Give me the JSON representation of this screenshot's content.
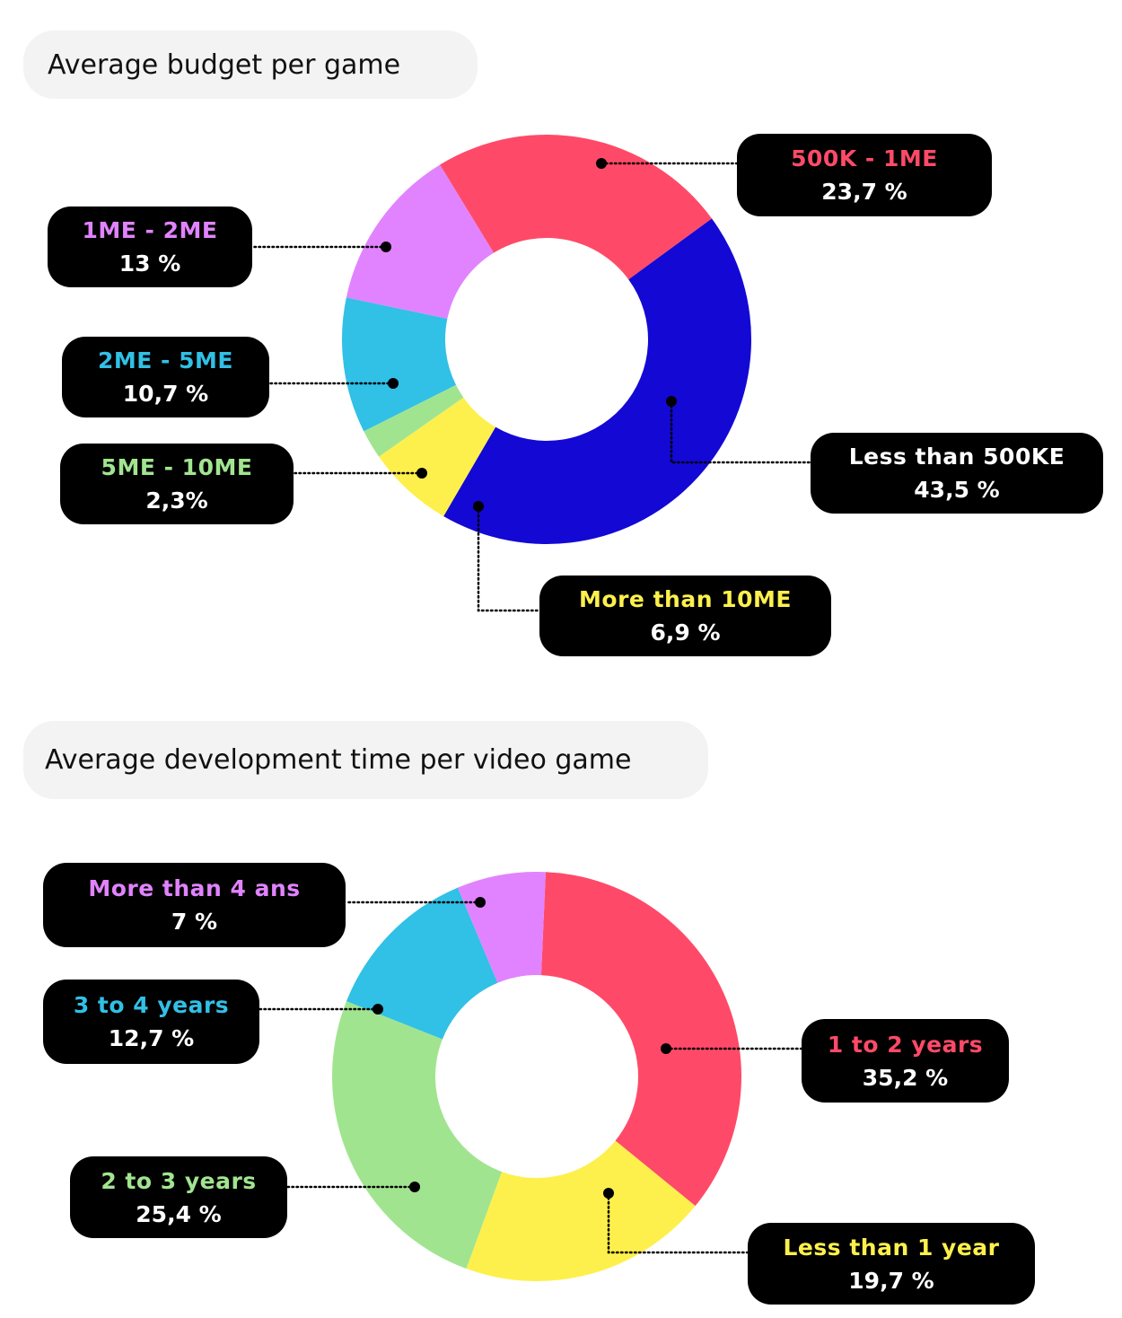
{
  "chart_data": [
    {
      "type": "pie",
      "title": "Average budget per game",
      "slices": [
        {
          "label": "Less than 500KE",
          "value": 43.5,
          "display": "43,5 %",
          "color": "#1408d4",
          "label_color": "#ffffff"
        },
        {
          "label": "More than 10ME",
          "value": 6.9,
          "display": "6,9 %",
          "color": "#fef04c",
          "label_color": "#fef04c"
        },
        {
          "label": "5ME - 10ME",
          "value": 2.3,
          "display": "2,3%",
          "color": "#a1e490",
          "label_color": "#a1e490"
        },
        {
          "label": "2ME - 5ME",
          "value": 10.7,
          "display": "10,7 %",
          "color": "#31c0e6",
          "label_color": "#31c0e6"
        },
        {
          "label": "1ME - 2ME",
          "value": 13,
          "display": "13 %",
          "color": "#e183fe",
          "label_color": "#e183fe"
        },
        {
          "label": "500K - 1ME",
          "value": 23.7,
          "display": "23,7 %",
          "color": "#fe4a68",
          "label_color": "#fe4a68"
        }
      ]
    },
    {
      "type": "pie",
      "title": "Average development time per video game",
      "slices": [
        {
          "label": "1 to 2 years",
          "value": 35.2,
          "display": "35,2 %",
          "color": "#fe4a68",
          "label_color": "#fe4a68"
        },
        {
          "label": "Less than 1 year",
          "value": 19.7,
          "display": "19,7 %",
          "color": "#fef04c",
          "label_color": "#fef04c"
        },
        {
          "label": "2 to 3 years",
          "value": 25.4,
          "display": "25,4 %",
          "color": "#a1e490",
          "label_color": "#a1e490"
        },
        {
          "label": "3 to 4 years",
          "value": 12.7,
          "display": "12,7 %",
          "color": "#31c0e6",
          "label_color": "#31c0e6"
        },
        {
          "label": "More than 4 ans",
          "value": 7,
          "display": "7 %",
          "color": "#e183fe",
          "label_color": "#e183fe"
        }
      ]
    }
  ]
}
